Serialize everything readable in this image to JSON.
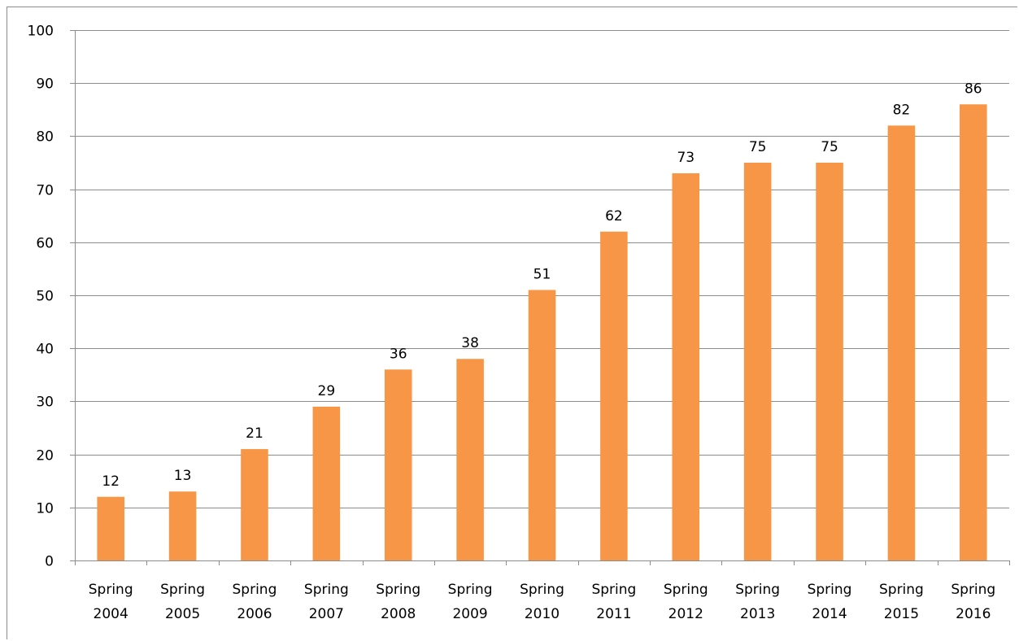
{
  "chart_data": {
    "type": "bar",
    "categories": [
      [
        "Spring",
        "2004"
      ],
      [
        "Spring",
        "2005"
      ],
      [
        "Spring",
        "2006"
      ],
      [
        "Spring",
        "2007"
      ],
      [
        "Spring",
        "2008"
      ],
      [
        "Spring",
        "2009"
      ],
      [
        "Spring",
        "2010"
      ],
      [
        "Spring",
        "2011"
      ],
      [
        "Spring",
        "2012"
      ],
      [
        "Spring",
        "2013"
      ],
      [
        "Spring",
        "2014"
      ],
      [
        "Spring",
        "2015"
      ],
      [
        "Spring",
        "2016"
      ]
    ],
    "values": [
      12,
      13,
      21,
      29,
      36,
      38,
      51,
      62,
      73,
      75,
      75,
      82,
      86
    ],
    "ylim": [
      0,
      100
    ],
    "yticks": [
      0,
      10,
      20,
      30,
      40,
      50,
      60,
      70,
      80,
      90,
      100
    ],
    "grid": true,
    "legend": "none",
    "bar_color": "#f79646",
    "grid_color": "#8c8c8c"
  }
}
